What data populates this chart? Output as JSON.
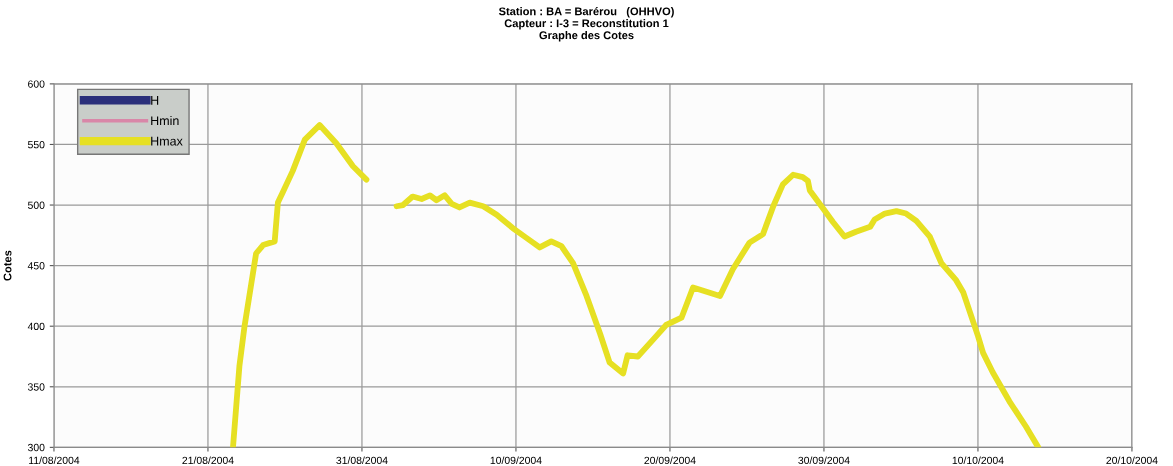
{
  "chart_data": {
    "type": "line",
    "title": "Station : BA = Barérou   (OHHVO)\nCapteur : I-3 = Reconstitution 1\nGraphe des Cotes",
    "ylabel": "Cotes",
    "x": [
      "2004-08-22T15:00",
      "2004-08-23T01:00",
      "2004-08-23T09:00",
      "2004-08-24T03:00",
      "2004-08-24T14:00",
      "2004-08-25T08:00",
      "2004-08-25T13:00",
      "2004-08-25T21:00",
      "2004-08-26T12:00",
      "2004-08-27T07:00",
      "2004-08-28T06:00",
      "2004-08-29T08:00",
      "2004-08-30T10:00",
      "2004-08-31T07:00",
      "2004-09-01T12:00",
      "2004-09-02T06:00",
      "2004-09-02T16:00",
      "2004-09-03T07:00",
      "2004-09-03T21:00",
      "2004-09-04T10:00",
      "2004-09-04T20:00",
      "2004-09-05T09:00",
      "2004-09-05T20:00",
      "2004-09-06T08:00",
      "2004-09-07T00:00",
      "2004-09-07T21:00",
      "2004-09-08T18:00",
      "2004-09-09T19:00",
      "2004-09-10T16:00",
      "2004-09-11T13:00",
      "2004-09-12T07:00",
      "2004-09-12T23:00",
      "2004-09-13T17:00",
      "2004-09-14T14:00",
      "2004-09-15T11:00",
      "2004-09-16T02:00",
      "2004-09-16T23:00",
      "2004-09-17T06:00",
      "2004-09-17T22:00",
      "2004-09-19T03:00",
      "2004-09-19T18:00",
      "2004-09-20T18:00",
      "2004-09-21T12:00",
      "2004-09-23T06:00",
      "2004-09-24T02:00",
      "2004-09-25T04:00",
      "2004-09-26T01:00",
      "2004-09-26T17:00",
      "2004-09-27T08:00",
      "2004-09-28T00:00",
      "2004-09-28T15:00",
      "2004-09-28T23:00",
      "2004-09-29T02:00",
      "2004-09-29T23:00",
      "2004-09-30T14:00",
      "2004-10-01T08:00",
      "2004-10-02T02:00",
      "2004-10-03T00:00",
      "2004-10-03T07:00",
      "2004-10-03T23:00",
      "2004-10-04T17:00",
      "2004-10-05T08:00",
      "2004-10-06T00:00",
      "2004-10-06T21:00",
      "2004-10-07T15:00",
      "2004-10-08T14:00",
      "2004-10-09T01:00",
      "2004-10-10T00:00",
      "2004-10-10T08:00",
      "2004-10-10T23:00",
      "2004-10-12T01:00",
      "2004-10-13T03:00",
      "2004-10-13T22:00"
    ],
    "series": [
      {
        "name": "H",
        "color": "#2b2f7a",
        "values": [
          null,
          null,
          null,
          null,
          null,
          null,
          null,
          null,
          null,
          null,
          null,
          null,
          null,
          null,
          null,
          null,
          null,
          null,
          null,
          null,
          null,
          null,
          null,
          null,
          null,
          null,
          null,
          null,
          null,
          null,
          null,
          null,
          null,
          null,
          null,
          null,
          null,
          null,
          null,
          null,
          null,
          null,
          null,
          null,
          null,
          null,
          null,
          null,
          null,
          null,
          null,
          null,
          null,
          null,
          null,
          null,
          null,
          null,
          null,
          null,
          null,
          null,
          null,
          null,
          null,
          null,
          null,
          null,
          null,
          null,
          null,
          null,
          null
        ]
      },
      {
        "name": "Hmin",
        "color": "#d987a8",
        "values": [
          null,
          null,
          null,
          null,
          null,
          null,
          null,
          null,
          null,
          null,
          null,
          null,
          null,
          null,
          null,
          null,
          null,
          null,
          null,
          null,
          null,
          null,
          null,
          null,
          null,
          null,
          null,
          null,
          null,
          null,
          null,
          null,
          null,
          null,
          null,
          null,
          null,
          null,
          null,
          null,
          null,
          null,
          null,
          null,
          null,
          null,
          null,
          null,
          null,
          null,
          null,
          null,
          null,
          null,
          null,
          null,
          null,
          null,
          null,
          null,
          null,
          null,
          null,
          null,
          null,
          null,
          null,
          null,
          null,
          null,
          null,
          null,
          null
        ]
      },
      {
        "name": "Hmax",
        "color": "#e6e023",
        "values": [
          300,
          367,
          400,
          460,
          467,
          470,
          502,
          511,
          528,
          554,
          566,
          551,
          532,
          521,
          null,
          499,
          500,
          507,
          505,
          508,
          504,
          508,
          501,
          498,
          502,
          499,
          492,
          481,
          473,
          465,
          470,
          466,
          452,
          425,
          394,
          370,
          361,
          376,
          375,
          392,
          401,
          407,
          432,
          425,
          447,
          469,
          476,
          499,
          517,
          525,
          523,
          520,
          512,
          497,
          486,
          474,
          478,
          482,
          488,
          493,
          495,
          493,
          487,
          474,
          452,
          438,
          428,
          392,
          378,
          362,
          338,
          317,
          300
        ]
      }
    ],
    "xlim": [
      "2004-08-11",
      "2004-10-20"
    ],
    "xticks": [
      {
        "value": "2004-08-11",
        "label": "11/08/2004"
      },
      {
        "value": "2004-08-21",
        "label": "21/08/2004"
      },
      {
        "value": "2004-08-31",
        "label": "31/08/2004"
      },
      {
        "value": "2004-09-10",
        "label": "10/09/2004"
      },
      {
        "value": "2004-09-20",
        "label": "20/09/2004"
      },
      {
        "value": "2004-09-30",
        "label": "30/09/2004"
      },
      {
        "value": "2004-10-10",
        "label": "10/10/2004"
      },
      {
        "value": "2004-10-20",
        "label": "20/10/2004"
      }
    ],
    "ylim": [
      300,
      600
    ],
    "yticks": [
      300,
      350,
      400,
      450,
      500,
      550,
      600
    ],
    "grid": true,
    "legend": "top left"
  }
}
